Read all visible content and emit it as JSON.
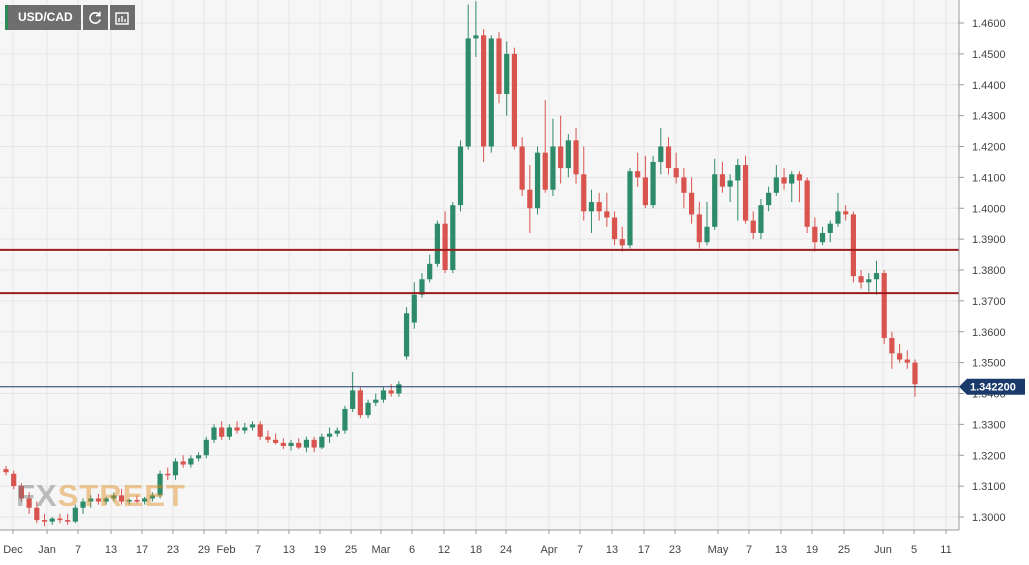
{
  "toolbar": {
    "symbol": "USD/CAD",
    "refresh_icon": "refresh-icon",
    "indicators_icon": "indicators-icon"
  },
  "watermark": {
    "prefix": "FX",
    "suffix": "STREET"
  },
  "colors": {
    "up": "#2e8b6a",
    "down": "#d9534f",
    "resistance": "#9b1c1c",
    "last_price": "#1a3a6b",
    "grid": "#e6e6e6",
    "background": "#f6f6f6"
  },
  "chart_data": {
    "type": "candlestick",
    "title": "",
    "xlabel": "",
    "ylabel": "",
    "ylim": [
      1.295,
      1.467
    ],
    "y_ticks": [
      "1.4600",
      "1.4500",
      "1.4400",
      "1.4300",
      "1.4200",
      "1.4100",
      "1.4000",
      "1.3900",
      "1.3800",
      "1.3700",
      "1.3600",
      "1.3500",
      "1.3400",
      "1.3300",
      "1.3200",
      "1.3100",
      "1.3000"
    ],
    "x_labels": [
      "Dec",
      "Jan",
      "7",
      "13",
      "17",
      "23",
      "29",
      "Feb",
      "7",
      "13",
      "19",
      "25",
      "Mar",
      "6",
      "12",
      "18",
      "24",
      "Apr",
      "7",
      "13",
      "17",
      "23",
      "May",
      "7",
      "13",
      "19",
      "25",
      "Jun",
      "5",
      "11"
    ],
    "horizontal_lines": [
      {
        "name": "resistance-upper",
        "value": 1.3865
      },
      {
        "name": "resistance-lower",
        "value": 1.3725
      }
    ],
    "last_price": {
      "value": 1.3422,
      "label": "1.342200"
    },
    "grid": true,
    "candles": [
      [
        1.3155,
        1.3165,
        1.3135,
        1.3145
      ],
      [
        1.314,
        1.315,
        1.309,
        1.31
      ],
      [
        1.31,
        1.311,
        1.305,
        1.306
      ],
      [
        1.306,
        1.308,
        1.301,
        1.303
      ],
      [
        1.303,
        1.305,
        1.298,
        1.299
      ],
      [
        1.299,
        1.301,
        1.297,
        1.2985
      ],
      [
        1.2985,
        1.3,
        1.2975,
        1.2995
      ],
      [
        1.2995,
        1.301,
        1.298,
        1.299
      ],
      [
        1.299,
        1.301,
        1.2975,
        1.2985
      ],
      [
        1.2985,
        1.304,
        1.298,
        1.303
      ],
      [
        1.303,
        1.306,
        1.301,
        1.305
      ],
      [
        1.305,
        1.307,
        1.303,
        1.306
      ],
      [
        1.306,
        1.3075,
        1.304,
        1.305
      ],
      [
        1.305,
        1.3065,
        1.304,
        1.306
      ],
      [
        1.306,
        1.308,
        1.305,
        1.307
      ],
      [
        1.307,
        1.309,
        1.304,
        1.305
      ],
      [
        1.305,
        1.306,
        1.304,
        1.3055
      ],
      [
        1.3055,
        1.307,
        1.3045,
        1.305
      ],
      [
        1.305,
        1.3065,
        1.304,
        1.306
      ],
      [
        1.306,
        1.308,
        1.305,
        1.307
      ],
      [
        1.307,
        1.315,
        1.306,
        1.314
      ],
      [
        1.314,
        1.316,
        1.312,
        1.3135
      ],
      [
        1.3135,
        1.319,
        1.312,
        1.318
      ],
      [
        1.318,
        1.32,
        1.316,
        1.317
      ],
      [
        1.317,
        1.32,
        1.316,
        1.319
      ],
      [
        1.319,
        1.321,
        1.318,
        1.32
      ],
      [
        1.32,
        1.326,
        1.319,
        1.325
      ],
      [
        1.325,
        1.33,
        1.324,
        1.329
      ],
      [
        1.329,
        1.331,
        1.325,
        1.326
      ],
      [
        1.326,
        1.33,
        1.325,
        1.329
      ],
      [
        1.329,
        1.331,
        1.327,
        1.328
      ],
      [
        1.328,
        1.3305,
        1.327,
        1.329
      ],
      [
        1.329,
        1.331,
        1.328,
        1.33
      ],
      [
        1.33,
        1.331,
        1.325,
        1.326
      ],
      [
        1.326,
        1.328,
        1.324,
        1.325
      ],
      [
        1.325,
        1.327,
        1.3235,
        1.324
      ],
      [
        1.324,
        1.3255,
        1.322,
        1.323
      ],
      [
        1.323,
        1.325,
        1.3215,
        1.324
      ],
      [
        1.324,
        1.3255,
        1.322,
        1.3225
      ],
      [
        1.3225,
        1.326,
        1.321,
        1.325
      ],
      [
        1.325,
        1.326,
        1.321,
        1.3225
      ],
      [
        1.3225,
        1.327,
        1.322,
        1.326
      ],
      [
        1.326,
        1.329,
        1.324,
        1.327
      ],
      [
        1.327,
        1.329,
        1.326,
        1.328
      ],
      [
        1.328,
        1.336,
        1.327,
        1.335
      ],
      [
        1.335,
        1.347,
        1.334,
        1.341
      ],
      [
        1.341,
        1.342,
        1.332,
        1.333
      ],
      [
        1.333,
        1.338,
        1.332,
        1.337
      ],
      [
        1.337,
        1.34,
        1.336,
        1.338
      ],
      [
        1.338,
        1.342,
        1.337,
        1.341
      ],
      [
        1.341,
        1.343,
        1.339,
        1.34
      ],
      [
        1.34,
        1.344,
        1.339,
        1.343
      ],
      [
        1.352,
        1.368,
        1.351,
        1.366
      ],
      [
        1.363,
        1.376,
        1.361,
        1.372
      ],
      [
        1.372,
        1.379,
        1.371,
        1.377
      ],
      [
        1.377,
        1.385,
        1.376,
        1.382
      ],
      [
        1.382,
        1.396,
        1.381,
        1.395
      ],
      [
        1.395,
        1.399,
        1.379,
        1.38
      ],
      [
        1.38,
        1.402,
        1.379,
        1.401
      ],
      [
        1.401,
        1.422,
        1.399,
        1.42
      ],
      [
        1.42,
        1.466,
        1.419,
        1.455
      ],
      [
        1.455,
        1.467,
        1.449,
        1.456
      ],
      [
        1.456,
        1.458,
        1.415,
        1.42
      ],
      [
        1.42,
        1.456,
        1.418,
        1.455
      ],
      [
        1.455,
        1.457,
        1.434,
        1.437
      ],
      [
        1.437,
        1.454,
        1.43,
        1.45
      ],
      [
        1.45,
        1.452,
        1.419,
        1.42
      ],
      [
        1.42,
        1.423,
        1.404,
        1.406
      ],
      [
        1.406,
        1.414,
        1.392,
        1.4
      ],
      [
        1.4,
        1.42,
        1.398,
        1.418
      ],
      [
        1.418,
        1.435,
        1.405,
        1.406
      ],
      [
        1.406,
        1.429,
        1.404,
        1.42
      ],
      [
        1.42,
        1.43,
        1.408,
        1.413
      ],
      [
        1.413,
        1.424,
        1.41,
        1.422
      ],
      [
        1.422,
        1.426,
        1.408,
        1.411
      ],
      [
        1.411,
        1.42,
        1.396,
        1.399
      ],
      [
        1.399,
        1.406,
        1.392,
        1.402
      ],
      [
        1.402,
        1.405,
        1.396,
        1.399
      ],
      [
        1.399,
        1.405,
        1.394,
        1.397
      ],
      [
        1.397,
        1.399,
        1.388,
        1.39
      ],
      [
        1.39,
        1.394,
        1.386,
        1.388
      ],
      [
        1.388,
        1.413,
        1.387,
        1.412
      ],
      [
        1.412,
        1.418,
        1.407,
        1.41
      ],
      [
        1.41,
        1.417,
        1.4,
        1.401
      ],
      [
        1.401,
        1.417,
        1.4,
        1.415
      ],
      [
        1.415,
        1.426,
        1.411,
        1.42
      ],
      [
        1.42,
        1.423,
        1.411,
        1.413
      ],
      [
        1.413,
        1.418,
        1.408,
        1.41
      ],
      [
        1.41,
        1.413,
        1.4,
        1.405
      ],
      [
        1.405,
        1.41,
        1.395,
        1.398
      ],
      [
        1.398,
        1.402,
        1.387,
        1.389
      ],
      [
        1.389,
        1.402,
        1.388,
        1.394
      ],
      [
        1.394,
        1.416,
        1.393,
        1.411
      ],
      [
        1.411,
        1.415,
        1.405,
        1.407
      ],
      [
        1.407,
        1.411,
        1.402,
        1.409
      ],
      [
        1.409,
        1.416,
        1.396,
        1.414
      ],
      [
        1.414,
        1.417,
        1.395,
        1.396
      ],
      [
        1.396,
        1.399,
        1.39,
        1.392
      ],
      [
        1.392,
        1.403,
        1.39,
        1.401
      ],
      [
        1.401,
        1.407,
        1.399,
        1.405
      ],
      [
        1.405,
        1.414,
        1.404,
        1.41
      ],
      [
        1.41,
        1.413,
        1.406,
        1.408
      ],
      [
        1.408,
        1.412,
        1.402,
        1.411
      ],
      [
        1.411,
        1.412,
        1.402,
        1.409
      ],
      [
        1.409,
        1.41,
        1.392,
        1.394
      ],
      [
        1.394,
        1.397,
        1.386,
        1.389
      ],
      [
        1.389,
        1.394,
        1.388,
        1.392
      ],
      [
        1.392,
        1.396,
        1.389,
        1.395
      ],
      [
        1.395,
        1.405,
        1.394,
        1.399
      ],
      [
        1.399,
        1.401,
        1.396,
        1.398
      ],
      [
        1.398,
        1.399,
        1.376,
        1.378
      ],
      [
        1.378,
        1.38,
        1.374,
        1.376
      ],
      [
        1.376,
        1.379,
        1.373,
        1.377
      ],
      [
        1.377,
        1.383,
        1.372,
        1.379
      ],
      [
        1.379,
        1.38,
        1.356,
        1.358
      ],
      [
        1.358,
        1.36,
        1.348,
        1.353
      ],
      [
        1.353,
        1.356,
        1.35,
        1.351
      ],
      [
        1.351,
        1.354,
        1.348,
        1.35
      ],
      [
        1.35,
        1.351,
        1.339,
        1.343
      ]
    ]
  }
}
